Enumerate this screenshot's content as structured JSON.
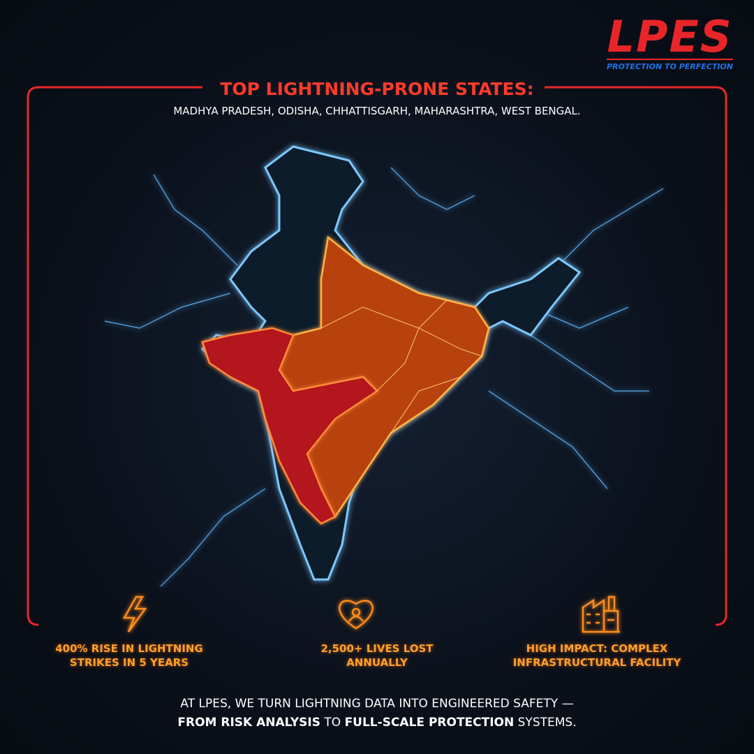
{
  "logo": {
    "name": "LPES",
    "tagline": "PROTECTION TO PERFECTION"
  },
  "header": {
    "title": "TOP LIGHTNING-PRONE STATES:",
    "subtitle": "MADHYA PRADESH, ODISHA, CHHATTISGARH, MAHARASHTRA, WEST BENGAL."
  },
  "stats": [
    {
      "lines": [
        "400% RISE IN LIGHTNING",
        "STRIKES IN 5 YEARS"
      ]
    },
    {
      "lines": [
        "2,500+ LIVES LOST",
        "ANNUALLY"
      ]
    },
    {
      "lines": [
        "HIGH IMPACT: COMPLEX",
        "INFRASTRUCTURAL FACILITY"
      ]
    }
  ],
  "footer": {
    "line1": "AT LPES, WE TURN LIGHTNING DATA INTO ENGINEERED SAFETY —",
    "line2": [
      {
        "text": "FROM RISK ANALYSIS",
        "bold": true
      },
      {
        "text": " TO ",
        "bold": false
      },
      {
        "text": "FULL-SCALE PROTECTION",
        "bold": true
      },
      {
        "text": " SYSTEMS.",
        "bold": false
      }
    ]
  }
}
